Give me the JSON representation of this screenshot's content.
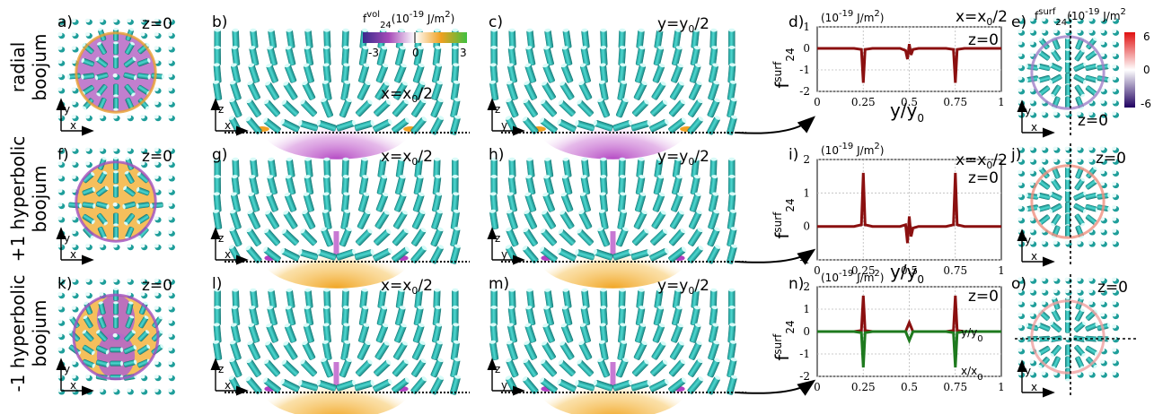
{
  "row_labels": [
    [
      "radial",
      "boojum"
    ],
    [
      "+1 hyperbolic",
      "boojum"
    ],
    [
      "-1 hyperbolic",
      "boojum"
    ]
  ],
  "panel_letters": [
    "a)",
    "b)",
    "c)",
    "d)",
    "e)",
    "f)",
    "g)",
    "h)",
    "i)",
    "j)",
    "k)",
    "l)",
    "m)",
    "n)",
    "o)"
  ],
  "slice_labels": {
    "z0": "z=0",
    "x_half": "x=x",
    "y_half": "y=y",
    "sub0": "0",
    "half": "/2"
  },
  "axis_letters": {
    "x": "x",
    "y": "y",
    "z": "z"
  },
  "colorbar_vol": {
    "label": "f",
    "sup": "vol",
    "sub": "24",
    "unit": "(10",
    "exp": "-19",
    "unit2": "J/m",
    "ticks": [
      "-3",
      "0",
      "3"
    ]
  },
  "colorbar_surf": {
    "label": "f",
    "sup": "surf",
    "sub": "24",
    "unit": "(10",
    "exp": "-19",
    "unit2": "J/m",
    "ticks": [
      "6",
      "0",
      "-6"
    ]
  },
  "plot_unit": {
    "pre": "(10",
    "exp": "-19",
    "post": "J/m",
    "sq": "2",
    ")": ")"
  },
  "plot_ylabel": {
    "main": "f",
    "sup": "surf",
    "sub": "24"
  },
  "plot_xlabel": {
    "main": "y/y",
    "sub": "0"
  },
  "curve_labels": {
    "y": "y/y",
    "x": "x/x",
    "sub": "0"
  },
  "chart_data": [
    {
      "type": "line",
      "panel": "d)",
      "x_ticks": [
        "0",
        "0.25",
        "0.5",
        "0.75",
        "1"
      ],
      "y_ticks": [
        "1",
        "0",
        "-1",
        "-2"
      ],
      "ylim": [
        -2,
        1
      ],
      "xlim": [
        0,
        1
      ],
      "series": [
        {
          "x": [
            0,
            0.2,
            0.24,
            0.25,
            0.26,
            0.3,
            0.45,
            0.48,
            0.49,
            0.5,
            0.51,
            0.52,
            0.55,
            0.7,
            0.74,
            0.75,
            0.76,
            0.8,
            1.0
          ],
          "y": [
            0,
            0,
            -0.05,
            -1.6,
            -0.05,
            0,
            0,
            -0.1,
            -0.5,
            0.2,
            -0.3,
            -0.05,
            0,
            0,
            -0.05,
            -1.6,
            -0.05,
            0,
            0
          ]
        }
      ]
    },
    {
      "type": "line",
      "panel": "i)",
      "x_ticks": [
        "0",
        "0.25",
        "0.5",
        "0.75",
        "1"
      ],
      "y_ticks": [
        "2",
        "1",
        "0",
        "-1"
      ],
      "ylim": [
        -1,
        2
      ],
      "xlim": [
        0,
        1
      ],
      "series": [
        {
          "x": [
            0,
            0.2,
            0.24,
            0.25,
            0.26,
            0.3,
            0.45,
            0.48,
            0.49,
            0.5,
            0.51,
            0.52,
            0.55,
            0.7,
            0.74,
            0.75,
            0.76,
            0.8,
            1.0
          ],
          "y": [
            0,
            0,
            0.05,
            1.6,
            0.05,
            0,
            0,
            0.05,
            -0.5,
            0.3,
            -0.3,
            -0.05,
            0,
            0,
            0.05,
            1.6,
            0.05,
            0,
            0
          ]
        }
      ]
    },
    {
      "type": "line",
      "panel": "n)",
      "x_ticks": [
        "0",
        "0.25",
        "0.5",
        "0.75",
        "1"
      ],
      "y_ticks": [
        "2",
        "1",
        "0",
        "-1",
        "-2"
      ],
      "ylim": [
        -2,
        2
      ],
      "xlim": [
        0,
        1
      ],
      "series": [
        {
          "x": [
            0,
            0.2,
            0.24,
            0.25,
            0.26,
            0.3,
            0.48,
            0.5,
            0.52,
            0.7,
            0.74,
            0.75,
            0.76,
            0.8,
            1.0
          ],
          "y": [
            0,
            0,
            0.05,
            1.6,
            0.05,
            0,
            0,
            0.4,
            0,
            0,
            0.05,
            1.6,
            0.05,
            0,
            0
          ]
        },
        {
          "x": [
            0,
            0.2,
            0.24,
            0.25,
            0.26,
            0.3,
            0.48,
            0.5,
            0.52,
            0.7,
            0.74,
            0.75,
            0.76,
            0.8,
            1.0
          ],
          "y": [
            0,
            0,
            -0.05,
            -1.6,
            -0.05,
            0,
            0,
            -0.4,
            0,
            0,
            -0.05,
            -1.6,
            -0.05,
            0,
            0
          ]
        }
      ]
    }
  ]
}
